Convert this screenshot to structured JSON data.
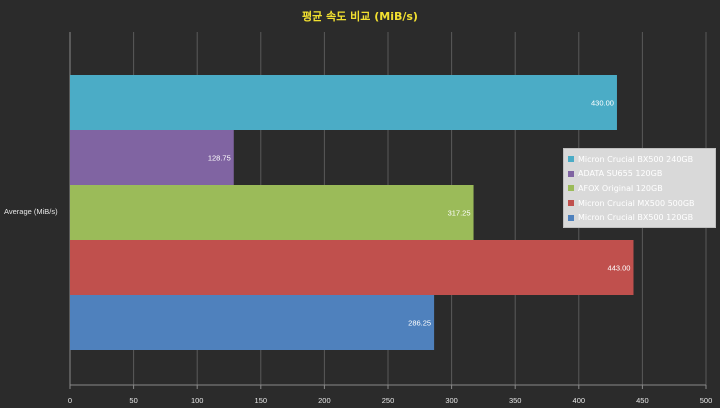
{
  "chart_data": {
    "type": "bar",
    "orientation": "horizontal",
    "title": "평균 속도 비교 (MiB/s)",
    "categories": [
      "Average (MiB/s)"
    ],
    "series": [
      {
        "name": "Micron Crucial BX500 240GB",
        "values": [
          430.0
        ],
        "label": "430.00",
        "color": "#4bacc6"
      },
      {
        "name": "ADATA SU655 120GB",
        "values": [
          128.75
        ],
        "label": "128.75",
        "color": "#8064a2"
      },
      {
        "name": "AFOX Original 120GB",
        "values": [
          317.25
        ],
        "label": "317.25",
        "color": "#9bbb59"
      },
      {
        "name": "Micron Crucial MX500 500GB",
        "values": [
          443.0
        ],
        "label": "443.00",
        "color": "#c0504d"
      },
      {
        "name": "Micron Crucial BX500 120GB",
        "values": [
          286.25
        ],
        "label": "286.25",
        "color": "#4f81bd"
      }
    ],
    "xlim": [
      0,
      500
    ],
    "xticks": [
      "0",
      "50",
      "100",
      "150",
      "200",
      "250",
      "300",
      "350",
      "400",
      "450",
      "500"
    ],
    "grid": true,
    "legend_position": "right"
  },
  "colors": {
    "background": "#2b2b2b",
    "grid": "#5a5a5a",
    "title": "#f2e030"
  }
}
